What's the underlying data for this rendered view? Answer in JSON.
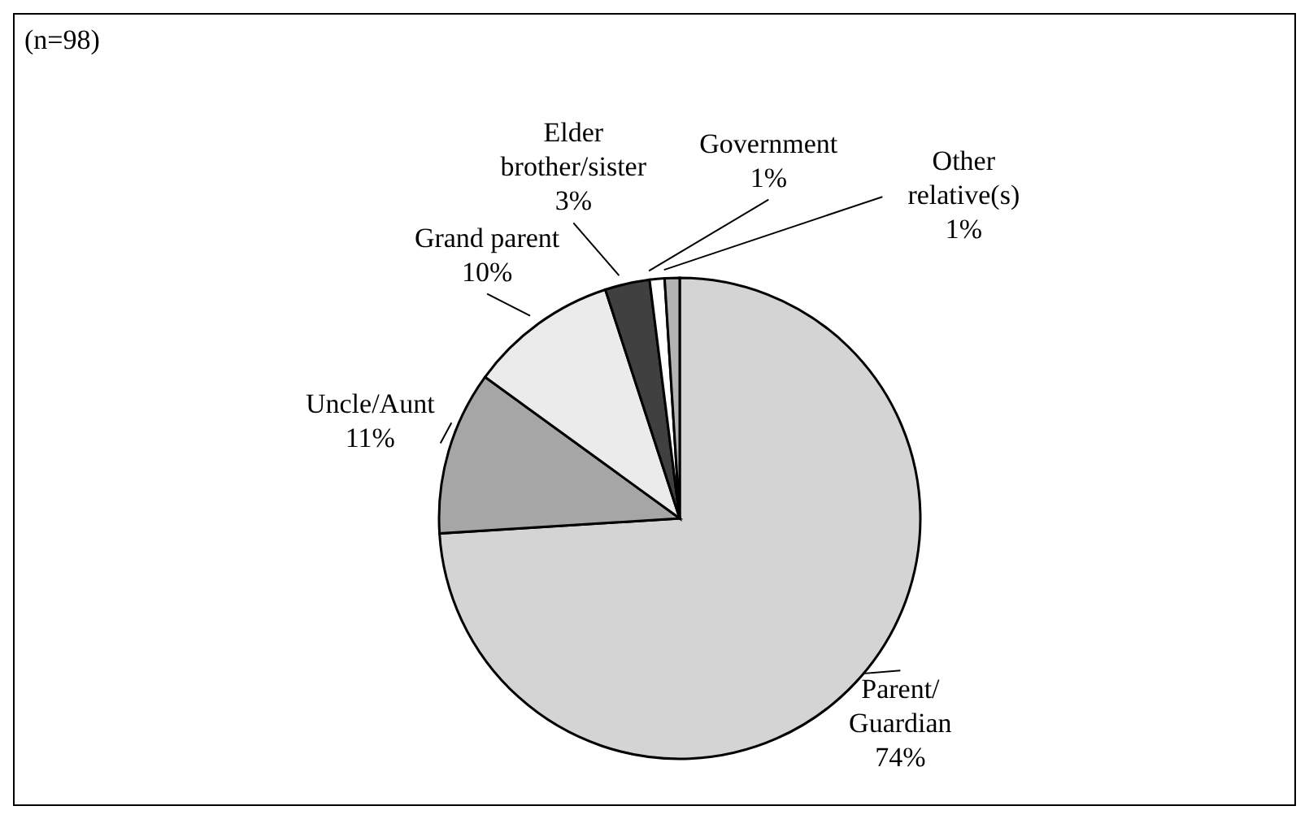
{
  "chart_data": {
    "type": "pie",
    "categories": [
      "Parent/ Guardian",
      "Uncle/Aunt",
      "Grand parent",
      "Elder brother/sister",
      "Government",
      "Other relative(s)"
    ],
    "values": [
      74,
      11,
      10,
      3,
      1,
      1
    ],
    "value_labels": [
      "74%",
      "11%",
      "10%",
      "3%",
      "1%",
      "1%"
    ],
    "colors": [
      "#d4d4d4",
      "#a6a6a6",
      "#ebebeb",
      "#404040",
      "#ffffff",
      "#b3b3b3"
    ],
    "annotations": [
      "(n=98)"
    ]
  }
}
